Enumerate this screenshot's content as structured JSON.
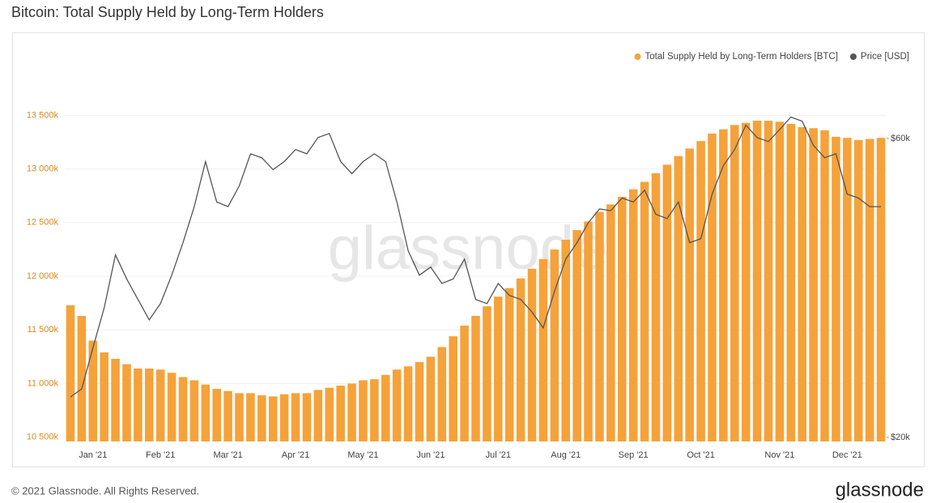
{
  "chart_data": {
    "type": "bar",
    "title": "Bitcoin: Total Supply Held by Long-Term Holders",
    "watermark": "glassnode",
    "copyright": "© 2021 Glassnode. All Rights Reserved.",
    "brand": "glassnode",
    "categories": [
      null,
      null,
      "Jan '21",
      null,
      null,
      null,
      null,
      null,
      "Feb '21",
      null,
      null,
      null,
      null,
      null,
      "Mar '21",
      null,
      null,
      null,
      null,
      null,
      "Apr '21",
      null,
      null,
      null,
      null,
      null,
      "May '21",
      null,
      null,
      null,
      null,
      null,
      "Jun '21",
      null,
      null,
      null,
      null,
      null,
      "Jul '21",
      null,
      null,
      null,
      null,
      null,
      "Aug '21",
      null,
      null,
      null,
      null,
      null,
      "Sep '21",
      null,
      null,
      null,
      null,
      null,
      "Oct '21",
      null,
      null,
      null,
      null,
      null,
      null,
      "Nov '21",
      null,
      null,
      null,
      null,
      null,
      "Dec '21",
      null,
      null,
      null
    ],
    "series": [
      {
        "name": "Total Supply Held by Long-Term Holders [BTC]",
        "type": "bar",
        "color": "#f5a23a",
        "values": [
          11730000,
          11630000,
          11400000,
          11290000,
          11230000,
          11180000,
          11140000,
          11140000,
          11130000,
          11100000,
          11060000,
          11030000,
          10990000,
          10950000,
          10930000,
          10910000,
          10910000,
          10890000,
          10880000,
          10900000,
          10910000,
          10910000,
          10940000,
          10960000,
          10980000,
          11000000,
          11030000,
          11040000,
          11080000,
          11130000,
          11160000,
          11200000,
          11250000,
          11340000,
          11440000,
          11540000,
          11630000,
          11720000,
          11810000,
          11890000,
          11980000,
          12070000,
          12160000,
          12250000,
          12340000,
          12430000,
          12510000,
          12600000,
          12670000,
          12740000,
          12810000,
          12880000,
          12960000,
          13040000,
          13120000,
          13190000,
          13260000,
          13330000,
          13370000,
          13410000,
          13430000,
          13450000,
          13450000,
          13440000,
          13420000,
          13390000,
          13380000,
          13360000,
          13300000,
          13290000,
          13270000,
          13280000,
          13290000
        ]
      },
      {
        "name": "Price [USD]",
        "type": "line",
        "axis": "y2",
        "color": "#555555",
        "values": [
          23200,
          23900,
          27800,
          32200,
          39100,
          35800,
          33200,
          30800,
          32700,
          36300,
          40900,
          46700,
          55100,
          47500,
          46700,
          50400,
          56700,
          55900,
          53500,
          55100,
          57600,
          56700,
          60200,
          61100,
          55100,
          52700,
          55100,
          56700,
          55100,
          47500,
          39700,
          36300,
          37400,
          35200,
          35800,
          38500,
          33200,
          32700,
          35200,
          33700,
          33200,
          31700,
          29900,
          34200,
          38500,
          40900,
          44000,
          46300,
          46000,
          48200,
          47500,
          49600,
          45400,
          44700,
          47500,
          40900,
          41500,
          48900,
          54300,
          57600,
          63000,
          60200,
          59300,
          62000,
          64900,
          63900,
          58500,
          55900,
          56700,
          48900,
          48200,
          46700,
          46700
        ]
      }
    ],
    "ylim": [
      10460000,
      13820000
    ],
    "yticks": [
      {
        "value": 10500000,
        "label": "10 500k"
      },
      {
        "value": 11000000,
        "label": "11 000k"
      },
      {
        "value": 11500000,
        "label": "11 500k"
      },
      {
        "value": 12000000,
        "label": "12 000k"
      },
      {
        "value": 12500000,
        "label": "12 500k"
      },
      {
        "value": 13000000,
        "label": "13 000k"
      },
      {
        "value": 13500000,
        "label": "13 500k"
      }
    ],
    "y2lim": [
      19700,
      74100
    ],
    "y2ticks": [
      {
        "value": 20000,
        "label": "$20k"
      },
      {
        "value": 60000,
        "label": "$60k"
      }
    ],
    "y2log": true,
    "grid": true,
    "legend": "top-right"
  }
}
